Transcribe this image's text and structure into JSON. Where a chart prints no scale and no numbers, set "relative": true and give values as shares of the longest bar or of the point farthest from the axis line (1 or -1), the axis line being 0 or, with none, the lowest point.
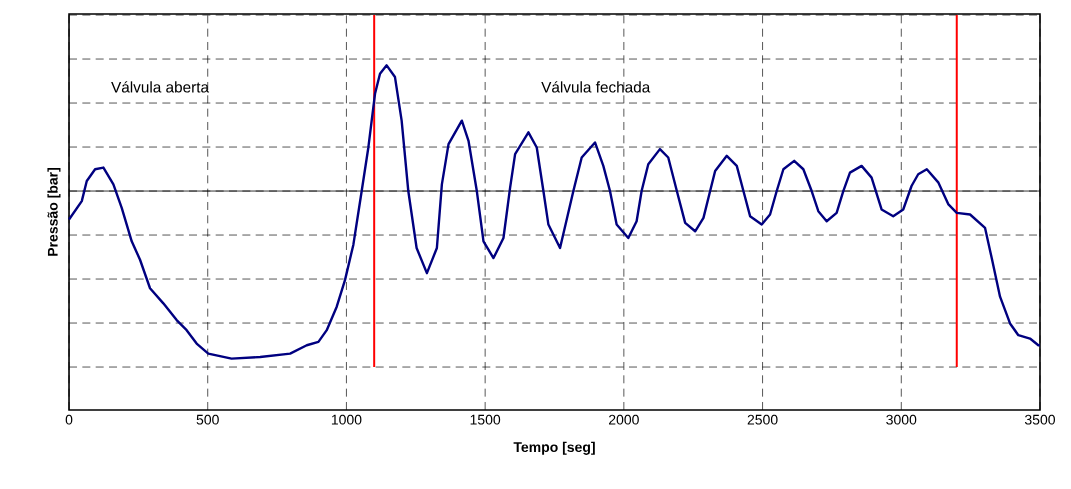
{
  "chart_data": {
    "type": "line",
    "relative": true,
    "xlabel": "Tempo [seg]",
    "ylabel": "Pressão [bar]",
    "xlim": [
      0,
      3500
    ],
    "xticks": [
      0,
      500,
      1000,
      1500,
      2000,
      2500,
      3000,
      3500
    ],
    "grid": true,
    "annotations": [
      "Válvula aberta",
      "Válvula fechada"
    ],
    "ref_lines": [
      {
        "axis": "x",
        "value": 1100,
        "color": "#ff0000"
      },
      {
        "axis": "x",
        "value": 3200,
        "color": "#ff0000"
      }
    ],
    "series": [
      {
        "color": "#000080",
        "x": [
          0,
          46,
          64,
          94,
          124,
          160,
          190,
          226,
          256,
          292,
          340,
          388,
          424,
          460,
          502,
          586,
          689,
          797,
          857,
          899,
          929,
          965,
          995,
          1025,
          1055,
          1079,
          1103,
          1121,
          1145,
          1175,
          1199,
          1223,
          1253,
          1290,
          1326,
          1344,
          1368,
          1416,
          1440,
          1470,
          1494,
          1530,
          1566,
          1590,
          1608,
          1656,
          1686,
          1710,
          1728,
          1770,
          1818,
          1848,
          1896,
          1926,
          1950,
          1974,
          2016,
          2046,
          2064,
          2088,
          2130,
          2160,
          2191,
          2221,
          2257,
          2287,
          2311,
          2329,
          2371,
          2407,
          2431,
          2455,
          2497,
          2527,
          2551,
          2575,
          2614,
          2647,
          2677,
          2701,
          2731,
          2767,
          2791,
          2815,
          2857,
          2893,
          2929,
          2971,
          3007,
          3037,
          3061,
          3092,
          3134,
          3170,
          3200,
          3248,
          3302,
          3326,
          3356,
          3392,
          3422,
          3464,
          3494,
          3500
        ],
        "values": [
          -0.17,
          -0.06,
          0.06,
          0.13,
          0.14,
          0.04,
          -0.1,
          -0.3,
          -0.41,
          -0.58,
          -0.67,
          -0.77,
          -0.83,
          -0.91,
          -0.97,
          -1,
          -0.99,
          -0.97,
          -0.92,
          -0.9,
          -0.83,
          -0.69,
          -0.53,
          -0.32,
          0,
          0.26,
          0.58,
          0.7,
          0.75,
          0.68,
          0.42,
          0,
          -0.34,
          -0.49,
          -0.34,
          0.04,
          0.28,
          0.42,
          0.3,
          0,
          -0.3,
          -0.4,
          -0.28,
          0.02,
          0.22,
          0.35,
          0.26,
          0,
          -0.2,
          -0.34,
          0,
          0.2,
          0.29,
          0.15,
          0,
          -0.2,
          -0.28,
          -0.18,
          0,
          0.16,
          0.25,
          0.2,
          0,
          -0.19,
          -0.24,
          -0.16,
          0,
          0.12,
          0.21,
          0.15,
          0,
          -0.15,
          -0.2,
          -0.14,
          0,
          0.13,
          0.18,
          0.13,
          0,
          -0.12,
          -0.18,
          -0.13,
          0,
          0.11,
          0.15,
          0.08,
          -0.11,
          -0.15,
          -0.11,
          0.03,
          0.1,
          0.13,
          0.05,
          -0.08,
          -0.13,
          -0.14,
          -0.22,
          -0.4,
          -0.63,
          -0.79,
          -0.86,
          -0.88,
          -0.92,
          -0.92
        ]
      }
    ]
  }
}
